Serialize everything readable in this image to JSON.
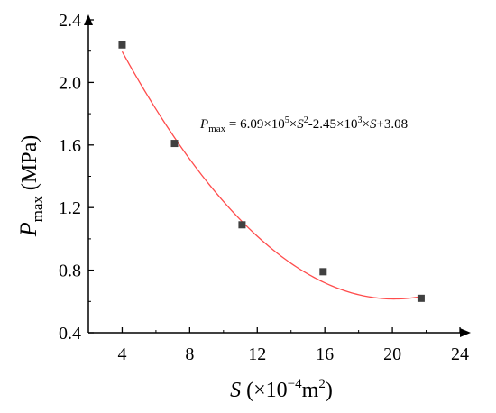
{
  "chart_data": {
    "type": "scatter",
    "title": "",
    "xlabel": {
      "var": "S",
      "open": " (×10",
      "exp": "−4",
      "unit": "m",
      "unit_exp": "2",
      "close": ")"
    },
    "ylabel": {
      "var": "P",
      "sub": "max",
      "unit": " (MPa)"
    },
    "xlim": [
      2,
      24
    ],
    "ylim": [
      0.4,
      2.4
    ],
    "x_ticks": [
      4,
      8,
      12,
      16,
      20,
      24
    ],
    "y_ticks": [
      0.4,
      0.8,
      1.2,
      1.6,
      2.0,
      2.4
    ],
    "x_tick_labels": [
      "4",
      "8",
      "12",
      "16",
      "20",
      "24"
    ],
    "y_tick_labels": [
      "0.4",
      "0.8",
      "1.2",
      "1.6",
      "2.0",
      "2.4"
    ],
    "grid": false,
    "series": [
      {
        "marker": "square",
        "color": "#404040",
        "x": [
          4.0,
          7.1,
          11.1,
          15.9,
          21.7
        ],
        "y": [
          2.24,
          1.61,
          1.09,
          0.79,
          0.62
        ]
      }
    ],
    "fit": {
      "color": "#ff4c4c",
      "coefficients": {
        "a": 609000,
        "b": -2450,
        "c": 3.08
      },
      "x_unit_scale": 0.0001,
      "range": [
        4.0,
        21.7
      ]
    },
    "annotation": {
      "var": "P",
      "sub": "max",
      "p1": " = 6.09×10",
      "e1": "5",
      "p2": "×",
      "v2": "S",
      "e2": "2",
      "p3": "-2.45×10",
      "e3": "3",
      "p4": "×",
      "v4": "S",
      "p5": "+3.08"
    }
  }
}
